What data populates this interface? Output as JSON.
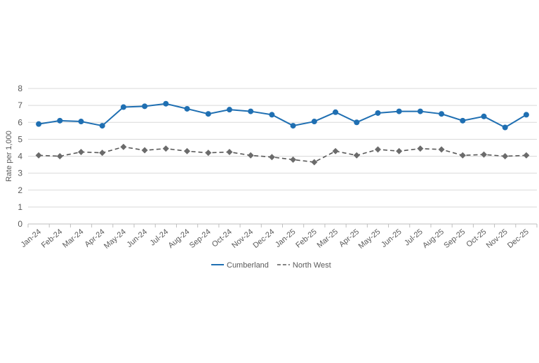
{
  "chart_data": {
    "type": "line",
    "title": "",
    "xlabel": "",
    "ylabel": "Rate per 1,000",
    "ylim": [
      0,
      8
    ],
    "yticks": [
      0,
      1,
      2,
      3,
      4,
      5,
      6,
      7,
      8
    ],
    "grid": true,
    "legend_position": "bottom-center",
    "categories": [
      "Jan-24",
      "Feb-24",
      "Mar-24",
      "Apr-24",
      "May-24",
      "Jun-24",
      "Jul-24",
      "Aug-24",
      "Sep-24",
      "Oct-24",
      "Nov-24",
      "Dec-24",
      "Jan-25",
      "Feb-25",
      "Mar-25",
      "Apr-25",
      "May-25",
      "Jun-25",
      "Jul-25",
      "Aug-25",
      "Sep-25",
      "Oct-25",
      "Nov-25",
      "Dec-25"
    ],
    "series": [
      {
        "name": "Cumberland",
        "color": "#1f6fb2",
        "line_style": "solid",
        "marker": "circle",
        "values": [
          5.9,
          6.1,
          6.05,
          5.8,
          6.9,
          6.95,
          7.1,
          6.8,
          6.5,
          6.75,
          6.65,
          6.45,
          5.8,
          6.05,
          6.6,
          6.0,
          6.55,
          6.65,
          6.65,
          6.5,
          6.1,
          6.35,
          5.7,
          6.45
        ]
      },
      {
        "name": "North West",
        "color": "#595959",
        "line_style": "dashed",
        "marker": "diamond",
        "values": [
          4.05,
          4.0,
          4.25,
          4.2,
          4.55,
          4.35,
          4.45,
          4.3,
          4.2,
          4.25,
          4.05,
          3.95,
          3.8,
          3.65,
          4.3,
          4.05,
          4.4,
          4.3,
          4.45,
          4.4,
          4.05,
          4.1,
          4.0,
          4.05
        ]
      }
    ]
  }
}
